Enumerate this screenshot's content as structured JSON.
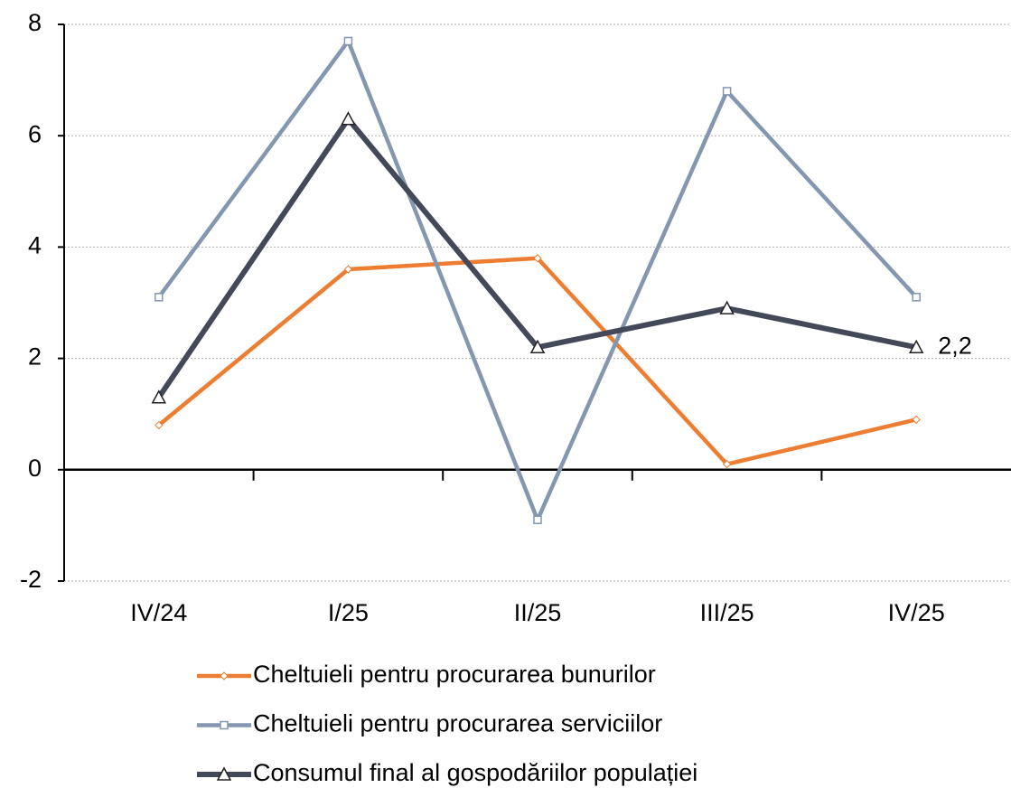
{
  "chart_data": {
    "type": "line",
    "categories": [
      "IV/24",
      "I/25",
      "II/25",
      "III/25",
      "IV/25"
    ],
    "series": [
      {
        "name": "Cheltuieli pentru procurarea bunurilor",
        "color": "#ed7d31",
        "marker": "diamond",
        "values": [
          0.8,
          3.6,
          3.8,
          0.1,
          0.9
        ]
      },
      {
        "name": "Cheltuieli pentru procurarea serviciilor",
        "color": "#8497b0",
        "marker": "square",
        "values": [
          3.1,
          7.7,
          -0.9,
          6.8,
          3.1
        ]
      },
      {
        "name": "Consumul final al gospodăriilor populației",
        "color": "#44495a",
        "marker": "triangle",
        "values": [
          1.3,
          6.3,
          2.2,
          2.9,
          2.2
        ],
        "value_labels": [
          null,
          null,
          null,
          null,
          "2,2"
        ]
      }
    ],
    "ylim": [
      -2,
      8
    ],
    "yticks": [
      -2,
      0,
      2,
      4,
      6,
      8
    ],
    "grid": true,
    "legend": "bottom"
  }
}
